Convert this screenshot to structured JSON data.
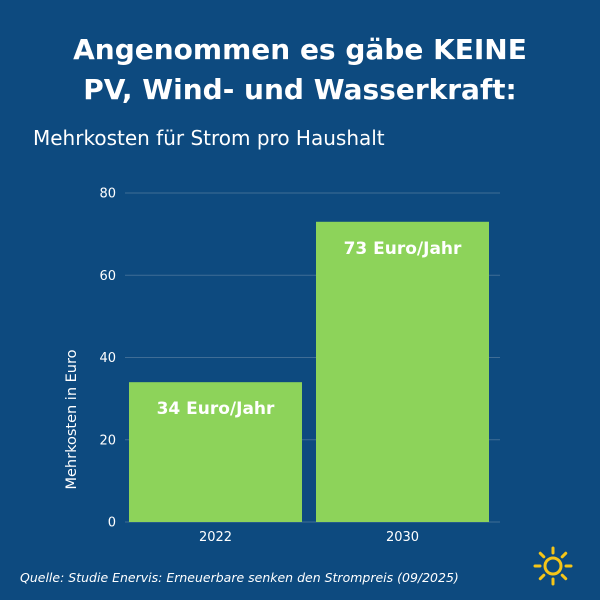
{
  "title_lines": [
    "Angenommen es gäbe KEINE",
    "PV, Wind- und Wasserkraft:"
  ],
  "subtitle": "Mehrkosten für Strom pro Haushalt",
  "source": "Quelle: Studie Enervis: Erneuerbare senken den Strompreis (09/2025)",
  "colors": {
    "background": "#0d4a7f",
    "bar": "#8dd35a",
    "gridline": "#3f6d96",
    "text": "#ffffff",
    "sun": "#f5c518"
  },
  "icons": {
    "corner": "sun-icon"
  },
  "chart_data": {
    "type": "bar",
    "categories": [
      "2022",
      "2030"
    ],
    "values": [
      34,
      73
    ],
    "data_labels": [
      "34 Euro/Jahr",
      "73 Euro/Jahr"
    ],
    "ylabel": "Mehrkosten in Euro",
    "xlabel": "",
    "ylim": [
      0,
      80
    ],
    "yticks": [
      0,
      20,
      40,
      60,
      80
    ],
    "grid": true
  }
}
